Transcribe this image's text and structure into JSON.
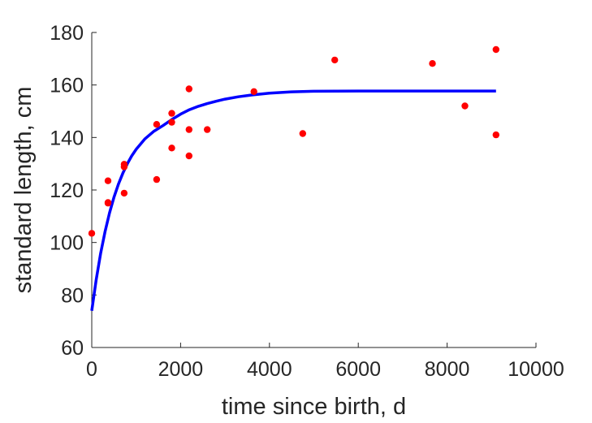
{
  "chart_data": {
    "type": "scatter",
    "title": "",
    "xlabel": "time since birth, d",
    "ylabel": "standard length, cm",
    "xlim": [
      0,
      10000
    ],
    "ylim": [
      60,
      180
    ],
    "xticks": [
      0,
      2000,
      4000,
      6000,
      8000,
      10000
    ],
    "yticks": [
      60,
      80,
      100,
      120,
      140,
      160,
      180
    ],
    "grid": false,
    "series": [
      {
        "kind": "scatter",
        "color": "#ff0000",
        "points": [
          [
            0,
            103.5
          ],
          [
            365,
            123.5
          ],
          [
            365,
            115.2
          ],
          [
            365,
            115.0
          ],
          [
            730,
            129.8
          ],
          [
            730,
            128.8
          ],
          [
            730,
            118.8
          ],
          [
            1460,
            145.0
          ],
          [
            1460,
            124.0
          ],
          [
            1800,
            149.2
          ],
          [
            1800,
            145.8
          ],
          [
            1800,
            136.0
          ],
          [
            2190,
            158.5
          ],
          [
            2190,
            143.0
          ],
          [
            2190,
            133.0
          ],
          [
            2600,
            143.0
          ],
          [
            3650,
            157.5
          ],
          [
            4750,
            141.5
          ],
          [
            5470,
            169.5
          ],
          [
            7670,
            168.2
          ],
          [
            8400,
            152.0
          ],
          [
            9100,
            173.5
          ],
          [
            9100,
            141.0
          ]
        ]
      },
      {
        "kind": "line",
        "color": "#0000ff",
        "x": [
          0,
          100,
          200,
          300,
          400,
          500,
          600,
          700,
          800,
          900,
          1000,
          1200,
          1400,
          1600,
          1800,
          2000,
          2200,
          2400,
          2600,
          2800,
          3000,
          3300,
          3600,
          4000,
          4500,
          5000,
          6000,
          7000,
          8000,
          9100
        ],
        "y": [
          74.0,
          85.9,
          95.8,
          104.2,
          111.3,
          117.2,
          122.2,
          126.4,
          130.0,
          133.0,
          135.5,
          139.5,
          142.4,
          144.5,
          146.8,
          148.9,
          150.6,
          151.9,
          152.9,
          153.8,
          154.6,
          155.5,
          156.2,
          156.9,
          157.4,
          157.6,
          157.7,
          157.7,
          157.7,
          157.7
        ]
      }
    ]
  }
}
